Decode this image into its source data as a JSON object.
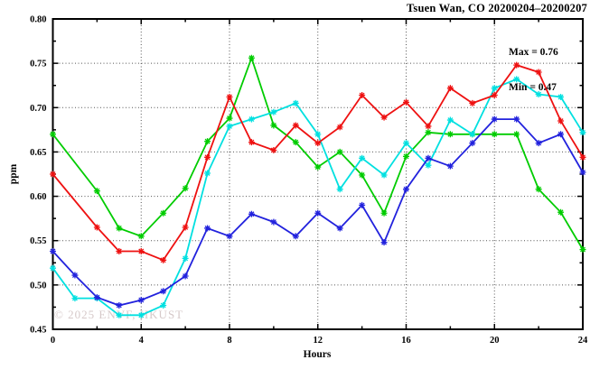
{
  "figure": {
    "title": "Tsuen Wan, CO 20200204–20200207",
    "watermark": "© 2025 ENVF, HKUST",
    "annotation": {
      "max_label": "Max = 0.76",
      "min_label": "Min = 0.47"
    }
  },
  "chart_data": {
    "type": "line",
    "title": "Tsuen Wan, CO 20200204–20200207",
    "xlabel": "Hours",
    "ylabel": "ppm",
    "xlim": [
      0,
      24
    ],
    "ylim": [
      0.45,
      0.8
    ],
    "x_major_ticks": [
      0,
      4,
      8,
      12,
      16,
      20,
      24
    ],
    "x_minor_ticks": [
      2,
      6,
      10,
      14,
      18,
      22
    ],
    "x_tick_labels": [
      "0",
      "4",
      "8",
      "12",
      "16",
      "20",
      "24"
    ],
    "y_major_ticks": [
      0.45,
      0.5,
      0.55,
      0.6,
      0.65,
      0.7,
      0.75,
      0.8
    ],
    "y_minor_ticks": [
      0.475,
      0.525,
      0.575,
      0.625,
      0.675,
      0.725,
      0.775
    ],
    "y_tick_labels": [
      "0.45",
      "0.50",
      "0.55",
      "0.60",
      "0.65",
      "0.70",
      "0.75",
      "0.80"
    ],
    "grid": {
      "x_at": [
        4,
        8,
        12,
        16,
        20
      ],
      "y_at": [
        0.5,
        0.55,
        0.6,
        0.65,
        0.7,
        0.75
      ],
      "style": "dotted"
    },
    "legend": "none",
    "marker": "star",
    "stats": {
      "max": 0.76,
      "min": 0.47
    },
    "x": [
      0,
      1,
      2,
      3,
      4,
      5,
      6,
      7,
      8,
      9,
      10,
      11,
      12,
      13,
      14,
      15,
      16,
      17,
      18,
      19,
      20,
      21,
      22,
      23,
      24
    ],
    "series": [
      {
        "name": "series-green",
        "color": "#00cc00",
        "values": [
          0.67,
          null,
          0.606,
          0.564,
          0.555,
          0.581,
          0.609,
          0.662,
          0.688,
          0.756,
          0.68,
          0.661,
          0.633,
          0.65,
          0.624,
          0.581,
          0.645,
          0.672,
          0.67,
          0.67,
          0.67,
          0.67,
          0.608,
          0.582,
          0.54
        ]
      },
      {
        "name": "series-cyan",
        "color": "#00e0e0",
        "values": [
          0.519,
          0.485,
          0.485,
          0.466,
          0.466,
          0.477,
          0.53,
          0.626,
          0.679,
          0.687,
          0.695,
          0.705,
          0.67,
          0.608,
          0.643,
          0.624,
          0.66,
          0.635,
          0.686,
          0.67,
          0.722,
          0.732,
          0.715,
          0.712,
          0.672
        ]
      },
      {
        "name": "series-blue",
        "color": "#2222dd",
        "values": [
          0.538,
          0.511,
          0.486,
          0.477,
          0.483,
          0.493,
          0.51,
          0.564,
          0.555,
          0.58,
          0.571,
          0.555,
          0.581,
          0.564,
          0.59,
          0.548,
          0.608,
          0.643,
          0.634,
          0.66,
          0.687,
          0.687,
          0.66,
          0.67,
          0.627
        ]
      },
      {
        "name": "series-red",
        "color": "#ee1111",
        "values": [
          0.625,
          null,
          0.565,
          0.538,
          0.538,
          0.528,
          0.565,
          0.644,
          0.712,
          0.661,
          0.652,
          0.68,
          0.66,
          0.678,
          0.714,
          0.689,
          0.706,
          0.679,
          0.722,
          0.705,
          0.714,
          0.748,
          0.74,
          0.685,
          0.644
        ]
      }
    ]
  }
}
